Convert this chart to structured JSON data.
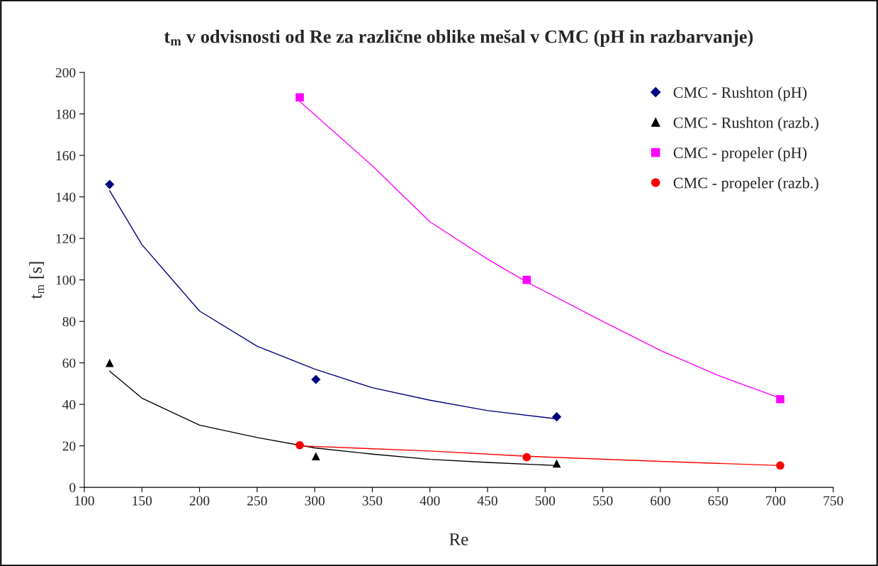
{
  "chart_data": {
    "type": "scatter",
    "title": "t$_{m}$ v odvisnosti od Re za različne oblike mešal v CMC (pH in razbarvanje)",
    "xlabel": "Re",
    "ylabel": "t$_{m}$ [s]",
    "xlim": [
      100,
      750
    ],
    "xticks": [
      100,
      150,
      200,
      250,
      300,
      350,
      400,
      450,
      500,
      550,
      600,
      650,
      700,
      750
    ],
    "ylim": [
      0,
      200
    ],
    "yticks": [
      0,
      20,
      40,
      60,
      80,
      100,
      120,
      140,
      160,
      180,
      200
    ],
    "grid": false,
    "legend": "top right",
    "series": [
      {
        "name": "CMC - Rushton (pH)",
        "marker": "diamond",
        "color": "#000080",
        "x": [
          122,
          301,
          510
        ],
        "values": [
          146,
          52,
          34
        ]
      },
      {
        "name": "CMC - Rushton (razb.)",
        "marker": "triangle",
        "color": "#000000",
        "x": [
          122,
          301,
          510
        ],
        "values": [
          60,
          15,
          11.5
        ]
      },
      {
        "name": "CMC - propeler (pH)",
        "marker": "square",
        "color": "#ff00ff",
        "x": [
          287,
          484,
          704
        ],
        "values": [
          188,
          100,
          42.5
        ]
      },
      {
        "name": "CMC - propeler (razb.)",
        "marker": "circle",
        "color": "#ff0000",
        "x": [
          287,
          484,
          704
        ],
        "values": [
          20.3,
          14.5,
          10.5
        ]
      },
      {
        "type": "line",
        "marker": "none",
        "color": "#000080",
        "x": [
          122,
          150,
          200,
          250,
          300,
          350,
          400,
          450,
          510
        ],
        "values": [
          143,
          117,
          85,
          68,
          57,
          48,
          42,
          37,
          33
        ]
      },
      {
        "type": "line",
        "marker": "none",
        "color": "#000000",
        "x": [
          122,
          150,
          200,
          250,
          300,
          350,
          400,
          450,
          510
        ],
        "values": [
          56,
          43,
          30,
          24,
          19,
          16,
          13.5,
          12,
          10.5
        ]
      },
      {
        "type": "line",
        "marker": "none",
        "color": "#ff00ff",
        "x": [
          287,
          350,
          400,
          450,
          484,
          550,
          600,
          650,
          704
        ],
        "values": [
          186,
          155,
          128,
          110,
          99,
          80,
          66,
          54,
          43
        ]
      },
      {
        "type": "line",
        "marker": "none",
        "color": "#ff0000",
        "x": [
          287,
          400,
          484,
          600,
          704
        ],
        "values": [
          20,
          17.5,
          15,
          12.5,
          10.5
        ]
      }
    ]
  }
}
